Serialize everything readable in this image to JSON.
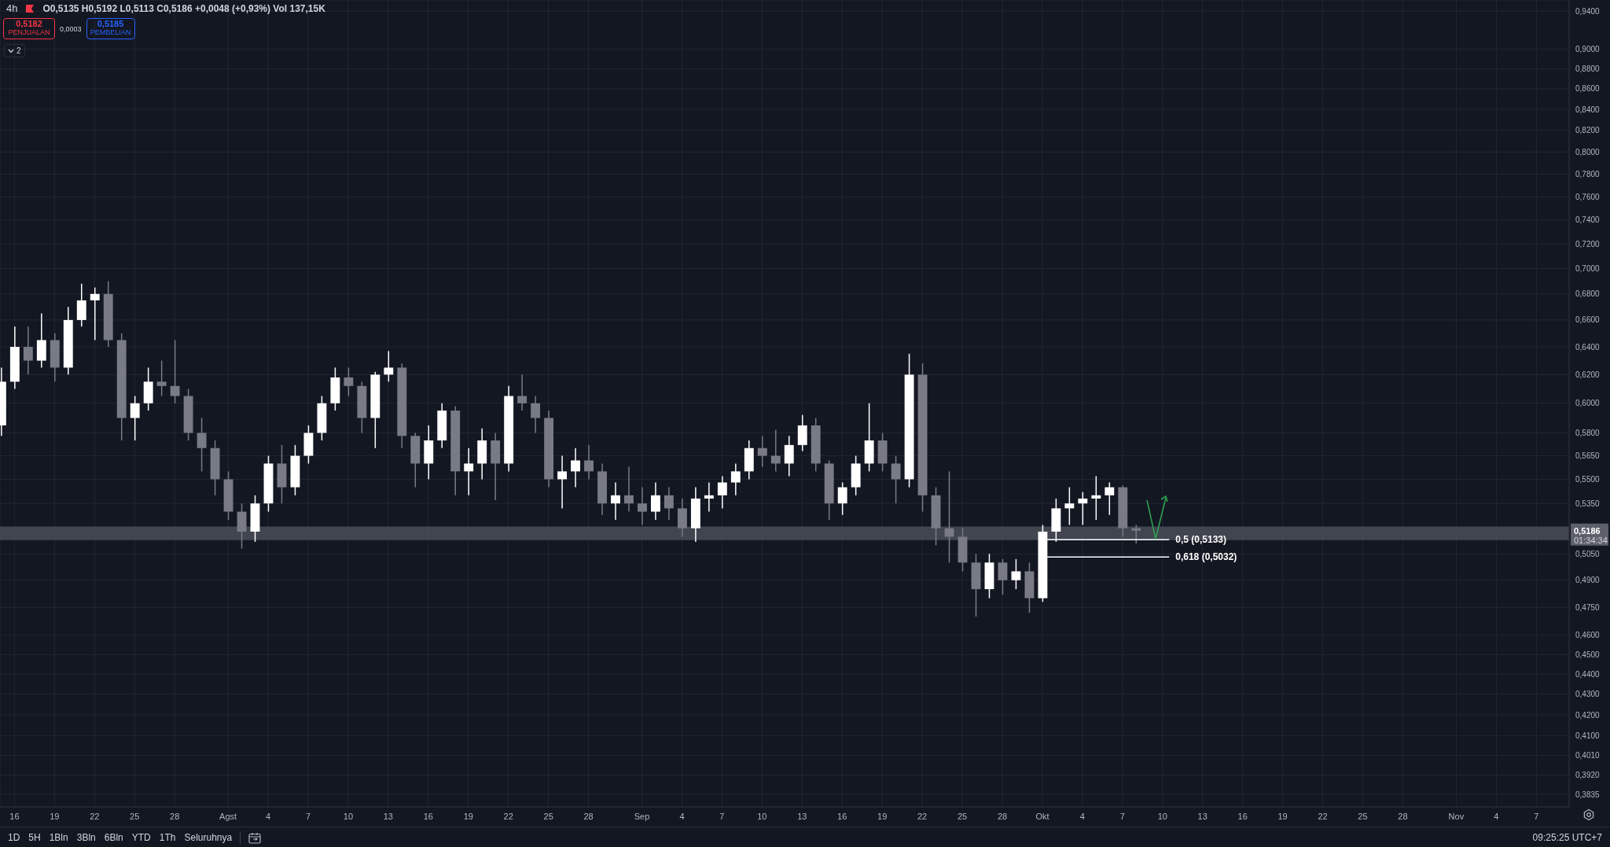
{
  "chart_data": {
    "type": "candlestick",
    "title": "4h",
    "x": [
      "--07-15",
      "--07-16",
      "--07-17",
      "--07-18",
      "--07-19",
      "--07-20",
      "--07-21",
      "--07-22",
      "--07-23",
      "--07-24",
      "--07-25",
      "--07-26",
      "--07-27",
      "--07-28",
      "--07-29",
      "--07-30",
      "--07-31",
      "--08-01",
      "--08-02",
      "--08-03",
      "--08-04",
      "--08-05",
      "--08-06",
      "--08-07",
      "--08-08",
      "--08-09",
      "--08-10",
      "--08-11",
      "--08-12",
      "--08-13",
      "--08-14",
      "--08-15",
      "--08-16",
      "--08-17",
      "--08-18",
      "--08-19",
      "--08-20",
      "--08-21",
      "--08-22",
      "--08-23",
      "--08-24",
      "--08-25",
      "--08-26",
      "--08-27",
      "--08-28",
      "--08-29",
      "--08-30",
      "--08-31",
      "--09-01",
      "--09-02",
      "--09-03",
      "--09-04",
      "--09-05",
      "--09-06",
      "--09-07",
      "--09-08",
      "--09-09",
      "--09-10",
      "--09-11",
      "--09-12",
      "--09-13",
      "--09-14",
      "--09-15",
      "--09-16",
      "--09-17",
      "--09-18",
      "--09-19",
      "--09-20",
      "--09-21",
      "--09-22",
      "--09-23",
      "--09-24",
      "--09-25",
      "--09-26",
      "--09-27",
      "--09-28",
      "--09-29",
      "--09-30",
      "--10-01",
      "--10-02",
      "--10-03",
      "--10-04",
      "--10-05",
      "--10-06",
      "--10-07",
      "--10-08"
    ],
    "ohlc": [
      [
        0.585,
        0.625,
        0.578,
        0.615
      ],
      [
        0.615,
        0.655,
        0.61,
        0.64
      ],
      [
        0.64,
        0.655,
        0.62,
        0.63
      ],
      [
        0.63,
        0.665,
        0.625,
        0.645
      ],
      [
        0.645,
        0.65,
        0.615,
        0.625
      ],
      [
        0.625,
        0.67,
        0.62,
        0.66
      ],
      [
        0.66,
        0.688,
        0.655,
        0.675
      ],
      [
        0.675,
        0.685,
        0.645,
        0.68
      ],
      [
        0.68,
        0.69,
        0.64,
        0.645
      ],
      [
        0.645,
        0.65,
        0.575,
        0.59
      ],
      [
        0.59,
        0.605,
        0.575,
        0.6
      ],
      [
        0.6,
        0.625,
        0.595,
        0.615
      ],
      [
        0.615,
        0.63,
        0.605,
        0.612
      ],
      [
        0.612,
        0.645,
        0.6,
        0.605
      ],
      [
        0.605,
        0.61,
        0.575,
        0.58
      ],
      [
        0.58,
        0.59,
        0.555,
        0.57
      ],
      [
        0.57,
        0.575,
        0.54,
        0.55
      ],
      [
        0.55,
        0.555,
        0.525,
        0.53
      ],
      [
        0.53,
        0.535,
        0.508,
        0.518
      ],
      [
        0.518,
        0.54,
        0.512,
        0.535
      ],
      [
        0.535,
        0.565,
        0.53,
        0.56
      ],
      [
        0.56,
        0.572,
        0.535,
        0.545
      ],
      [
        0.545,
        0.572,
        0.54,
        0.565
      ],
      [
        0.565,
        0.585,
        0.56,
        0.58
      ],
      [
        0.58,
        0.605,
        0.575,
        0.6
      ],
      [
        0.6,
        0.625,
        0.595,
        0.618
      ],
      [
        0.618,
        0.625,
        0.605,
        0.612
      ],
      [
        0.612,
        0.615,
        0.58,
        0.59
      ],
      [
        0.59,
        0.622,
        0.57,
        0.62
      ],
      [
        0.62,
        0.637,
        0.615,
        0.625
      ],
      [
        0.625,
        0.628,
        0.57,
        0.578
      ],
      [
        0.578,
        0.58,
        0.545,
        0.56
      ],
      [
        0.56,
        0.585,
        0.55,
        0.575
      ],
      [
        0.575,
        0.6,
        0.57,
        0.595
      ],
      [
        0.595,
        0.598,
        0.54,
        0.555
      ],
      [
        0.555,
        0.57,
        0.54,
        0.56
      ],
      [
        0.56,
        0.583,
        0.55,
        0.575
      ],
      [
        0.575,
        0.58,
        0.537,
        0.56
      ],
      [
        0.56,
        0.612,
        0.555,
        0.605
      ],
      [
        0.605,
        0.62,
        0.595,
        0.6
      ],
      [
        0.6,
        0.605,
        0.58,
        0.59
      ],
      [
        0.59,
        0.595,
        0.545,
        0.55
      ],
      [
        0.55,
        0.565,
        0.532,
        0.555
      ],
      [
        0.555,
        0.57,
        0.545,
        0.562
      ],
      [
        0.562,
        0.572,
        0.55,
        0.555
      ],
      [
        0.555,
        0.56,
        0.528,
        0.535
      ],
      [
        0.535,
        0.548,
        0.525,
        0.54
      ],
      [
        0.54,
        0.558,
        0.53,
        0.535
      ],
      [
        0.535,
        0.545,
        0.522,
        0.53
      ],
      [
        0.53,
        0.548,
        0.525,
        0.54
      ],
      [
        0.54,
        0.545,
        0.525,
        0.532
      ],
      [
        0.532,
        0.538,
        0.515,
        0.52
      ],
      [
        0.52,
        0.545,
        0.512,
        0.538
      ],
      [
        0.538,
        0.548,
        0.53,
        0.54
      ],
      [
        0.54,
        0.552,
        0.532,
        0.548
      ],
      [
        0.548,
        0.56,
        0.54,
        0.555
      ],
      [
        0.555,
        0.575,
        0.55,
        0.57
      ],
      [
        0.57,
        0.578,
        0.558,
        0.565
      ],
      [
        0.565,
        0.582,
        0.555,
        0.56
      ],
      [
        0.56,
        0.578,
        0.552,
        0.572
      ],
      [
        0.572,
        0.592,
        0.568,
        0.585
      ],
      [
        0.585,
        0.59,
        0.555,
        0.56
      ],
      [
        0.56,
        0.562,
        0.525,
        0.535
      ],
      [
        0.535,
        0.548,
        0.528,
        0.545
      ],
      [
        0.545,
        0.565,
        0.54,
        0.56
      ],
      [
        0.56,
        0.6,
        0.555,
        0.575
      ],
      [
        0.575,
        0.58,
        0.555,
        0.56
      ],
      [
        0.56,
        0.565,
        0.535,
        0.55
      ],
      [
        0.55,
        0.635,
        0.545,
        0.62
      ],
      [
        0.62,
        0.628,
        0.53,
        0.54
      ],
      [
        0.54,
        0.545,
        0.51,
        0.52
      ],
      [
        0.52,
        0.555,
        0.5,
        0.515
      ],
      [
        0.515,
        0.52,
        0.495,
        0.5
      ],
      [
        0.5,
        0.505,
        0.47,
        0.485
      ],
      [
        0.485,
        0.505,
        0.48,
        0.5
      ],
      [
        0.5,
        0.502,
        0.482,
        0.49
      ],
      [
        0.49,
        0.502,
        0.485,
        0.495
      ],
      [
        0.495,
        0.5,
        0.472,
        0.48
      ],
      [
        0.48,
        0.522,
        0.478,
        0.518
      ],
      [
        0.518,
        0.538,
        0.512,
        0.532
      ],
      [
        0.532,
        0.545,
        0.522,
        0.535
      ],
      [
        0.535,
        0.542,
        0.522,
        0.538
      ],
      [
        0.538,
        0.552,
        0.525,
        0.54
      ],
      [
        0.54,
        0.548,
        0.528,
        0.545
      ],
      [
        0.545,
        0.546,
        0.515,
        0.52
      ],
      [
        0.52,
        0.522,
        0.511,
        0.5186
      ]
    ],
    "colors": [
      "#ffffff",
      "#ffffff",
      "#787b86",
      "#ffffff",
      "#787b86",
      "#ffffff",
      "#ffffff",
      "#ffffff",
      "#787b86",
      "#787b86",
      "#ffffff",
      "#ffffff",
      "#787b86",
      "#787b86",
      "#787b86",
      "#787b86",
      "#787b86",
      "#787b86",
      "#787b86",
      "#ffffff",
      "#ffffff",
      "#787b86",
      "#ffffff",
      "#ffffff",
      "#ffffff",
      "#ffffff",
      "#787b86",
      "#787b86",
      "#ffffff",
      "#ffffff",
      "#787b86",
      "#787b86",
      "#ffffff",
      "#ffffff",
      "#787b86",
      "#ffffff",
      "#ffffff",
      "#787b86",
      "#ffffff",
      "#787b86",
      "#787b86",
      "#787b86",
      "#ffffff",
      "#ffffff",
      "#787b86",
      "#787b86",
      "#ffffff",
      "#787b86",
      "#787b86",
      "#ffffff",
      "#787b86",
      "#787b86",
      "#ffffff",
      "#ffffff",
      "#ffffff",
      "#ffffff",
      "#ffffff",
      "#787b86",
      "#787b86",
      "#ffffff",
      "#ffffff",
      "#787b86",
      "#787b86",
      "#ffffff",
      "#ffffff",
      "#ffffff",
      "#787b86",
      "#787b86",
      "#ffffff",
      "#787b86",
      "#787b86",
      "#787b86",
      "#787b86",
      "#787b86",
      "#ffffff",
      "#787b86",
      "#ffffff",
      "#787b86",
      "#ffffff",
      "#ffffff",
      "#ffffff",
      "#ffffff",
      "#ffffff",
      "#ffffff",
      "#787b86",
      "#787b86"
    ],
    "log": "y",
    "ylim": [
      0.378,
      0.952
    ],
    "yticks": [
      {
        "value": 0.94,
        "label": "0,9400"
      },
      {
        "value": 0.9,
        "label": "0,9000"
      },
      {
        "value": 0.88,
        "label": "0,8800"
      },
      {
        "value": 0.86,
        "label": "0,8600"
      },
      {
        "value": 0.84,
        "label": "0,8400"
      },
      {
        "value": 0.82,
        "label": "0,8200"
      },
      {
        "value": 0.8,
        "label": "0,8000"
      },
      {
        "value": 0.78,
        "label": "0,7800"
      },
      {
        "value": 0.76,
        "label": "0,7600"
      },
      {
        "value": 0.74,
        "label": "0,7400"
      },
      {
        "value": 0.72,
        "label": "0,7200"
      },
      {
        "value": 0.7,
        "label": "0,7000"
      },
      {
        "value": 0.68,
        "label": "0,6800"
      },
      {
        "value": 0.66,
        "label": "0,6600"
      },
      {
        "value": 0.64,
        "label": "0,6400"
      },
      {
        "value": 0.62,
        "label": "0,6200"
      },
      {
        "value": 0.6,
        "label": "0,6000"
      },
      {
        "value": 0.58,
        "label": "0,5800"
      },
      {
        "value": 0.565,
        "label": "0,5650"
      },
      {
        "value": 0.55,
        "label": "0,5500"
      },
      {
        "value": 0.535,
        "label": "0,5350"
      },
      {
        "value": 0.505,
        "label": "0,5050"
      },
      {
        "value": 0.49,
        "label": "0,4900"
      },
      {
        "value": 0.475,
        "label": "0,4750"
      },
      {
        "value": 0.46,
        "label": "0,4600"
      },
      {
        "value": 0.45,
        "label": "0,4500"
      },
      {
        "value": 0.44,
        "label": "0,4400"
      },
      {
        "value": 0.43,
        "label": "0,4300"
      },
      {
        "value": 0.42,
        "label": "0,4200"
      },
      {
        "value": 0.41,
        "label": "0,4100"
      },
      {
        "value": 0.401,
        "label": "0,4010"
      },
      {
        "value": 0.392,
        "label": "0,3920"
      },
      {
        "value": 0.3835,
        "label": "0,3835"
      }
    ],
    "xlim": [
      "--07-14T22:00",
      "--11-09T11:00"
    ],
    "xticks": [
      {
        "value": "--07-16",
        "label": "16"
      },
      {
        "value": "--07-19",
        "label": "19"
      },
      {
        "value": "--07-22",
        "label": "22"
      },
      {
        "value": "--07-25",
        "label": "25"
      },
      {
        "value": "--07-28",
        "label": "28"
      },
      {
        "value": "--08-01",
        "label": "Agst"
      },
      {
        "value": "--08-04",
        "label": "4"
      },
      {
        "value": "--08-07",
        "label": "7"
      },
      {
        "value": "--08-10",
        "label": "10"
      },
      {
        "value": "--08-13",
        "label": "13"
      },
      {
        "value": "--08-16",
        "label": "16"
      },
      {
        "value": "--08-19",
        "label": "19"
      },
      {
        "value": "--08-22",
        "label": "22"
      },
      {
        "value": "--08-25",
        "label": "25"
      },
      {
        "value": "--08-28",
        "label": "28"
      },
      {
        "value": "--09-01",
        "label": "Sep"
      },
      {
        "value": "--09-04",
        "label": "4"
      },
      {
        "value": "--09-07",
        "label": "7"
      },
      {
        "value": "--09-10",
        "label": "10"
      },
      {
        "value": "--09-13",
        "label": "13"
      },
      {
        "value": "--09-16",
        "label": "16"
      },
      {
        "value": "--09-19",
        "label": "19"
      },
      {
        "value": "--09-22",
        "label": "22"
      },
      {
        "value": "--09-25",
        "label": "25"
      },
      {
        "value": "--09-28",
        "label": "28"
      },
      {
        "value": "--10-01",
        "label": "Okt"
      },
      {
        "value": "--10-04",
        "label": "4"
      },
      {
        "value": "--10-07",
        "label": "7"
      },
      {
        "value": "--10-10",
        "label": "10"
      },
      {
        "value": "--10-13",
        "label": "13"
      },
      {
        "value": "--10-16",
        "label": "16"
      },
      {
        "value": "--10-19",
        "label": "19"
      },
      {
        "value": "--10-22",
        "label": "22"
      },
      {
        "value": "--10-25",
        "label": "25"
      },
      {
        "value": "--10-28",
        "label": "28"
      },
      {
        "value": "--11-01",
        "label": "Nov"
      },
      {
        "value": "--11-04",
        "label": "4"
      },
      {
        "value": "--11-07",
        "label": "7"
      }
    ],
    "grid": true,
    "bands": [
      {
        "axis": "y",
        "from": 0.513,
        "to": 0.521,
        "color": "#4a4d57"
      }
    ],
    "ref_lines": [
      {
        "axis": "y",
        "value": 0.5133,
        "label": "0,5 (0,5133)",
        "color": "#ffffff"
      },
      {
        "axis": "y",
        "value": 0.5032,
        "label": "0,618 (0,5032)",
        "color": "#ffffff"
      }
    ],
    "annotations": [
      "O0,5135 H0,5192 L0,5113 C0,5186 +0,0048 (+0,93%) Vol 137,15K",
      "0,5182",
      "PENJUALAN",
      "0,0003",
      "0,5185",
      "PEMBELIAN",
      "2",
      "0,5186",
      "01:34:34",
      "1D",
      "5H",
      "1Bln",
      "3Bln",
      "6Bln",
      "YTD",
      "1Th",
      "Seluruhnya",
      "09:25:25 UTC+7"
    ]
  }
}
